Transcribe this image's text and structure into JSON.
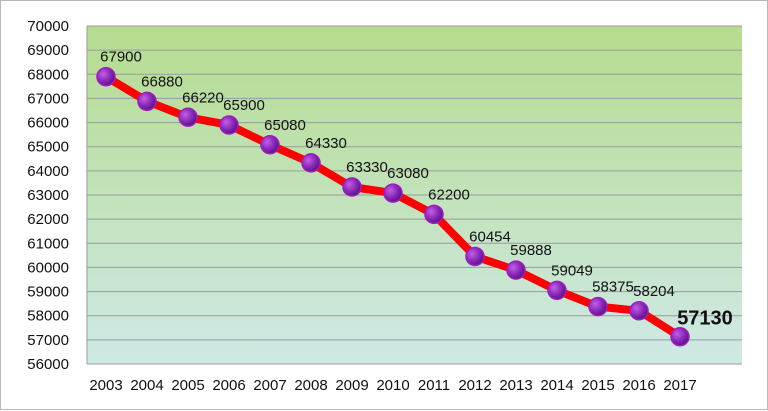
{
  "chart_data": {
    "type": "line",
    "title": "",
    "xlabel": "",
    "ylabel": "",
    "categories": [
      "2003",
      "2004",
      "2005",
      "2006",
      "2007",
      "2008",
      "2009",
      "2010",
      "2011",
      "2012",
      "2013",
      "2014",
      "2015",
      "2016",
      "2017"
    ],
    "series": [
      {
        "name": "Value",
        "values": [
          67900,
          66880,
          66220,
          65900,
          65080,
          64330,
          63330,
          63080,
          62200,
          60454,
          59888,
          59049,
          58375,
          58204,
          57130
        ],
        "line_color": "#ff0000",
        "marker_color": "#9b1fbf"
      }
    ],
    "data_labels": [
      "67900",
      "66880",
      "66220",
      "65900",
      "65080",
      "64330",
      "63330",
      "63080",
      "62200",
      "60454",
      "59888",
      "59049",
      "58375",
      "58204",
      "57130"
    ],
    "highlighted_label_index": 14,
    "ylim": [
      56000,
      70000
    ],
    "ytick_step": 1000,
    "grid": true,
    "legend": "none",
    "background_gradient": [
      "#b5dc8e",
      "#cfe9e6"
    ]
  }
}
